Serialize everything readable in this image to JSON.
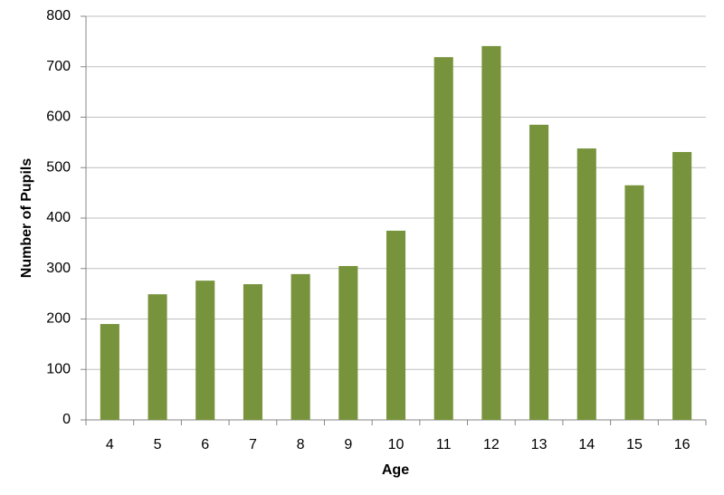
{
  "chart_data": {
    "type": "bar",
    "x_label": "Age",
    "y_label": "Number of Pupils",
    "categories": [
      "4",
      "5",
      "6",
      "7",
      "8",
      "9",
      "10",
      "11",
      "12",
      "13",
      "14",
      "15",
      "16"
    ],
    "values": [
      190,
      249,
      276,
      269,
      289,
      305,
      375,
      719,
      741,
      585,
      538,
      465,
      531
    ],
    "color": "#77933c",
    "ylim": [
      0,
      800
    ],
    "yticks": [
      0,
      100,
      200,
      300,
      400,
      500,
      600,
      700,
      800
    ],
    "grid": true
  }
}
